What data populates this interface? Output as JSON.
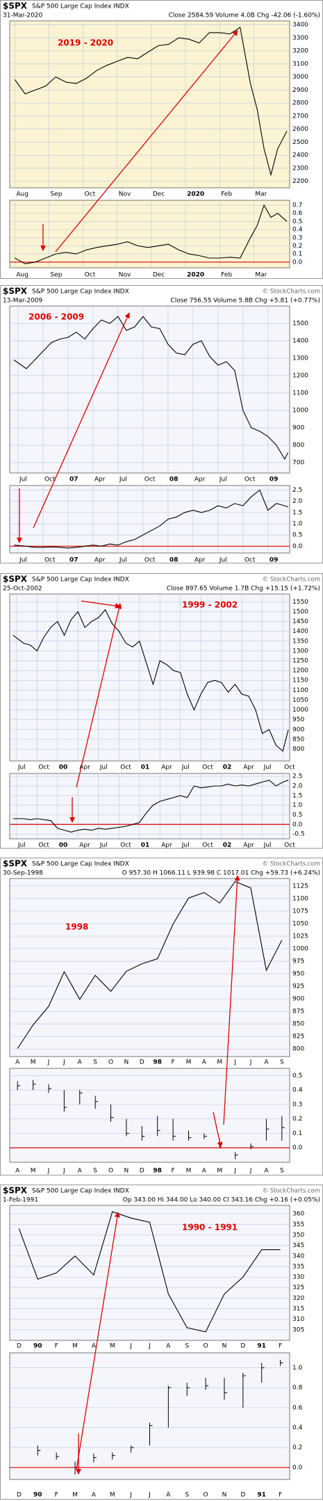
{
  "chart_data": [
    {
      "type": "line",
      "symbol": "$SPX",
      "name": "S&P 500 Large Cap Index INDX",
      "date": "31-Mar-2020",
      "stats": "Close 2584.59 Volume 4.0B Chg -42.06 (-1.60%)",
      "annotation": "2019 - 2020",
      "background": "#fbf3d2",
      "color": "#000000",
      "grid": true,
      "x": [
        0,
        0.3,
        0.6,
        0.9,
        1.2,
        1.5,
        1.8,
        2.1,
        2.4,
        2.7,
        3.0,
        3.3,
        3.6,
        3.9,
        4.2,
        4.5,
        4.8,
        5.1,
        5.4,
        5.7,
        6.0,
        6.3,
        6.6,
        6.9,
        7.1,
        7.3,
        7.5,
        7.7,
        7.97
      ],
      "values": [
        2980,
        2870,
        2900,
        2930,
        3000,
        2960,
        2950,
        2990,
        3050,
        3090,
        3120,
        3150,
        3140,
        3190,
        3240,
        3250,
        3300,
        3290,
        3260,
        3340,
        3340,
        3330,
        3380,
        2950,
        2750,
        2450,
        2250,
        2450,
        2585
      ],
      "xlim": [
        -0.15,
        8.05
      ],
      "xticks": [
        {
          "value": 0,
          "label": "Aug"
        },
        {
          "value": 1,
          "label": "Sep"
        },
        {
          "value": 2,
          "label": "Oct"
        },
        {
          "value": 3,
          "label": "Nov"
        },
        {
          "value": 4,
          "label": "Dec"
        },
        {
          "value": 5,
          "label": "2020"
        },
        {
          "value": 6,
          "label": "Feb"
        },
        {
          "value": 7,
          "label": "Mar"
        }
      ],
      "ylim": [
        2150,
        3430
      ],
      "yticks": [
        2200,
        2300,
        2400,
        2500,
        2600,
        2700,
        2800,
        2900,
        3000,
        3100,
        3200,
        3300,
        3400
      ],
      "lower": {
        "type": "line",
        "values": [
          0.05,
          -0.02,
          0.0,
          0.05,
          0.1,
          0.12,
          0.1,
          0.15,
          0.18,
          0.2,
          0.22,
          0.25,
          0.2,
          0.18,
          0.2,
          0.22,
          0.15,
          0.1,
          0.08,
          0.05,
          0.05,
          0.06,
          0.05,
          0.3,
          0.45,
          0.7,
          0.55,
          0.6,
          0.5
        ],
        "ylim": [
          -0.07,
          0.76
        ],
        "yticks": [
          {
            "value": 0,
            "label": "0.0"
          },
          0.1,
          0.2,
          0.3,
          0.4,
          0.5,
          0.6,
          0.7
        ],
        "reference_line": 0,
        "reference_color": "#e00000"
      }
    },
    {
      "type": "line",
      "symbol": "$SPX",
      "name": "S&P 500 Large Cap Index INDX",
      "date": "13-Mar-2009",
      "stats": "Close 756.55 Volume 5.8B Chg +5.81 (+0.77%)",
      "watermark": "© StockCharts.com",
      "annotation": "2006 - 2009",
      "background": "#f4f6fc",
      "color": "#000000",
      "grid": true,
      "x": [
        5.5,
        7,
        8,
        9,
        10,
        11,
        12,
        13,
        14,
        15,
        16,
        17,
        18,
        19,
        20,
        21,
        22,
        23,
        24,
        25,
        26,
        27,
        28,
        29,
        30,
        31,
        32,
        33,
        34,
        35,
        36,
        37,
        38,
        38.4
      ],
      "values": [
        1290,
        1240,
        1290,
        1340,
        1390,
        1410,
        1420,
        1450,
        1410,
        1470,
        1520,
        1500,
        1540,
        1460,
        1480,
        1540,
        1480,
        1470,
        1380,
        1330,
        1320,
        1380,
        1400,
        1310,
        1260,
        1280,
        1230,
        1000,
        900,
        880,
        850,
        800,
        720,
        757
      ],
      "xlim": [
        5,
        38.6
      ],
      "xticks": [
        {
          "value": 6,
          "label": "Jul"
        },
        {
          "value": 9,
          "label": "Oct"
        },
        {
          "value": 12,
          "label": "07"
        },
        {
          "value": 15,
          "label": "Apr"
        },
        {
          "value": 18,
          "label": "Jul"
        },
        {
          "value": 21,
          "label": "Oct"
        },
        {
          "value": 24,
          "label": "08"
        },
        {
          "value": 27,
          "label": "Apr"
        },
        {
          "value": 30,
          "label": "Jul"
        },
        {
          "value": 33,
          "label": "Oct"
        },
        {
          "value": 36,
          "label": "09"
        }
      ],
      "ylim": [
        640,
        1600
      ],
      "yticks": [
        700,
        800,
        900,
        1000,
        1100,
        1200,
        1300,
        1400,
        1500
      ],
      "lower": {
        "type": "line",
        "values": [
          0.05,
          0.0,
          -0.05,
          -0.05,
          -0.03,
          -0.05,
          -0.08,
          -0.05,
          0.0,
          0.05,
          0.0,
          0.1,
          0.05,
          0.2,
          0.3,
          0.5,
          0.7,
          0.9,
          1.2,
          1.3,
          1.5,
          1.6,
          1.5,
          1.6,
          1.8,
          1.7,
          1.9,
          1.8,
          2.2,
          2.5,
          1.6,
          1.9,
          1.8,
          1.75
        ],
        "ylim": [
          -0.3,
          2.7
        ],
        "yticks": [
          {
            "value": 0,
            "label": "0.0"
          },
          0.5,
          {
            "value": 1,
            "label": "1.0"
          },
          1.5,
          {
            "value": 2,
            "label": "2.0"
          },
          2.5
        ],
        "reference_line": 0,
        "reference_color": "#e00000"
      }
    },
    {
      "type": "line",
      "symbol": "$SPX",
      "name": "S&P 500 Large Cap Index INDX",
      "date": "25-Oct-2002",
      "stats": "Close 897.65 Volume 1.7B Chg +15.15 (+1.72%)",
      "watermark": "© StockCharts.com",
      "annotation": "1999 - 2002",
      "background": "#f4f6fc",
      "color": "#000000",
      "grid": true,
      "x": [
        5.5,
        7,
        8,
        9,
        10,
        11,
        12,
        13,
        14,
        15,
        16,
        17,
        18,
        19,
        20,
        21,
        22,
        23,
        24,
        25,
        26,
        27,
        28,
        29,
        30,
        31,
        32,
        33,
        34,
        35,
        36,
        37,
        38,
        39,
        40,
        41,
        42,
        43,
        44,
        45,
        45.8
      ],
      "values": [
        1380,
        1340,
        1330,
        1300,
        1370,
        1420,
        1450,
        1380,
        1460,
        1500,
        1420,
        1450,
        1470,
        1510,
        1440,
        1400,
        1340,
        1320,
        1350,
        1240,
        1130,
        1250,
        1230,
        1200,
        1190,
        1080,
        1000,
        1080,
        1140,
        1150,
        1140,
        1090,
        1130,
        1080,
        1070,
        1000,
        880,
        900,
        820,
        790,
        898
      ],
      "xlim": [
        5,
        46
      ],
      "xticks": [
        {
          "value": 6,
          "label": "Jul"
        },
        {
          "value": 9,
          "label": "Oct"
        },
        {
          "value": 12,
          "label": "00"
        },
        {
          "value": 15,
          "label": "Apr"
        },
        {
          "value": 18,
          "label": "Jul"
        },
        {
          "value": 21,
          "label": "Oct"
        },
        {
          "value": 24,
          "label": "01"
        },
        {
          "value": 27,
          "label": "Apr"
        },
        {
          "value": 30,
          "label": "Jul"
        },
        {
          "value": 33,
          "label": "Oct"
        },
        {
          "value": 36,
          "label": "02"
        },
        {
          "value": 39,
          "label": "Apr"
        },
        {
          "value": 42,
          "label": "Jul"
        },
        {
          "value": 45,
          "label": "Oct"
        }
      ],
      "ylim": [
        740,
        1590
      ],
      "yticks": [
        800,
        850,
        900,
        950,
        1000,
        1050,
        1100,
        1150,
        1200,
        1250,
        1300,
        1350,
        1400,
        1450,
        1500,
        1550
      ],
      "lower": {
        "type": "line",
        "values": [
          0.3,
          0.3,
          0.25,
          0.3,
          0.25,
          0.2,
          -0.2,
          -0.3,
          -0.4,
          -0.3,
          -0.25,
          -0.3,
          -0.2,
          -0.25,
          -0.2,
          -0.15,
          -0.1,
          0.0,
          0.1,
          0.6,
          1.0,
          1.2,
          1.3,
          1.4,
          1.5,
          1.4,
          2.0,
          1.9,
          1.95,
          2.0,
          2.0,
          2.1,
          2.0,
          2.05,
          2.0,
          2.1,
          2.2,
          2.3,
          2.0,
          2.2,
          2.3
        ],
        "ylim": [
          -0.75,
          2.65
        ],
        "yticks": [
          -0.5,
          {
            "value": 0,
            "label": "0.0"
          },
          0.5,
          {
            "value": 1,
            "label": "1.0"
          },
          1.5,
          {
            "value": 2,
            "label": "2.0"
          },
          2.5
        ],
        "reference_line": 0,
        "reference_color": "#e00000"
      }
    },
    {
      "type": "line",
      "symbol": "$SPX",
      "name": "S&P 500 Large Cap Index INDX",
      "date": "30-Sep-1998",
      "stats": "O 957.30 H 1066.11 L 939.98 C 1017.01 Chg +59.73 (+6.24%)",
      "watermark": "© StockCharts.com",
      "annotation": "1998",
      "background": "#f4f6fc",
      "color": "#000000",
      "grid": true,
      "categories": [
        "A",
        "M",
        "J",
        "J",
        "A",
        "S",
        "O",
        "N",
        "D",
        "98",
        "F",
        "M",
        "A",
        "M",
        "J",
        "J",
        "A",
        "S"
      ],
      "values": [
        801,
        848,
        885,
        954,
        899,
        947,
        915,
        955,
        970,
        980,
        1049,
        1101,
        1112,
        1091,
        1134,
        1121,
        957,
        1017
      ],
      "ylim": [
        785,
        1140
      ],
      "yticks": [
        800,
        825,
        850,
        875,
        900,
        925,
        950,
        975,
        1000,
        1025,
        1050,
        1075,
        1100,
        1125
      ],
      "lower": {
        "type": "hlc",
        "high": [
          0.46,
          0.47,
          0.44,
          0.4,
          0.4,
          0.36,
          0.3,
          0.2,
          0.15,
          0.22,
          0.2,
          0.12,
          0.1,
          0.06,
          -0.03,
          0.03,
          0.2,
          0.22
        ],
        "low": [
          0.4,
          0.4,
          0.38,
          0.25,
          0.3,
          0.27,
          0.18,
          0.08,
          0.05,
          0.08,
          0.05,
          0.05,
          0.06,
          0.0,
          -0.08,
          -0.01,
          0.05,
          0.05
        ],
        "close": [
          0.43,
          0.44,
          0.41,
          0.28,
          0.38,
          0.32,
          0.21,
          0.1,
          0.08,
          0.12,
          0.08,
          0.07,
          0.08,
          0.03,
          -0.05,
          0.01,
          0.13,
          0.14
        ],
        "ylim": [
          -0.1,
          0.55
        ],
        "yticks": [
          {
            "value": 0,
            "label": "0.0"
          },
          0.1,
          0.2,
          0.3,
          0.4,
          0.5
        ],
        "reference_line": 0,
        "reference_color": "#e00000"
      }
    },
    {
      "type": "line",
      "symbol": "$SPX",
      "name": "S&P 500 Large Cap Index INDX",
      "date": "1-Feb-1991",
      "stats": "Op 343.00 Hi 344.00 Lo 340.00 Cl 343.16 Chg +0.16 (+0.05%)",
      "watermark": "© StockCharts.com",
      "annotation": "1990 - 1991",
      "background": "#f4f6fc",
      "color": "#000000",
      "grid": true,
      "categories": [
        "D",
        "90",
        "F",
        "M",
        "A",
        "M",
        "J",
        "J",
        "A",
        "S",
        "O",
        "N",
        "D",
        "91",
        "F"
      ],
      "values": [
        353,
        329,
        332,
        340,
        331,
        361,
        358,
        356,
        322,
        306,
        304,
        322,
        330,
        343,
        343
      ],
      "ylim": [
        300,
        364
      ],
      "yticks": [
        305,
        310,
        315,
        320,
        325,
        330,
        335,
        340,
        345,
        350,
        355,
        360
      ],
      "lower": {
        "type": "hlc",
        "high": [
          null,
          0.22,
          0.15,
          0.06,
          0.14,
          0.15,
          0.22,
          0.45,
          0.82,
          0.85,
          0.9,
          0.9,
          0.95,
          1.05,
          1.08
        ],
        "low": [
          null,
          0.12,
          0.08,
          -0.07,
          0.05,
          0.08,
          0.15,
          0.22,
          0.4,
          0.72,
          0.78,
          0.68,
          0.6,
          0.85,
          1.02
        ],
        "close": [
          null,
          0.17,
          0.11,
          0.0,
          0.1,
          0.12,
          0.2,
          0.42,
          0.8,
          0.8,
          0.82,
          0.75,
          0.92,
          1.0,
          1.05
        ],
        "ylim": [
          -0.12,
          1.15
        ],
        "yticks": [
          {
            "value": 0,
            "label": "0.0"
          },
          0.2,
          0.4,
          0.6,
          0.8,
          {
            "value": 1,
            "label": "1.0"
          }
        ],
        "reference_line": 0,
        "reference_color": "#e00000"
      }
    }
  ]
}
